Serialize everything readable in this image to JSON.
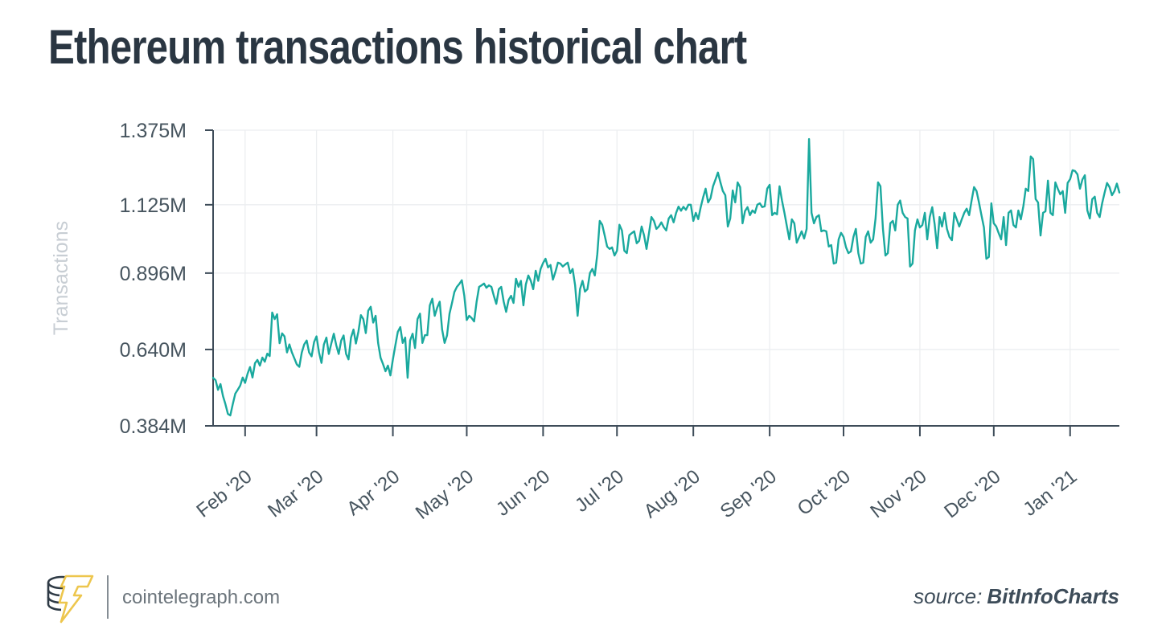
{
  "title": "Ethereum transactions historical chart",
  "footer": {
    "site": "cointelegraph.com",
    "source_prefix": "source:",
    "source_name": "BitInfoCharts"
  },
  "colors": {
    "line": "#1aa99e",
    "axis": "#3e4c59",
    "grid": "#eceef0",
    "tick_label": "#47555f",
    "y_axis_title": "#c8ced4",
    "title_text": "#2a3642",
    "logo_coin_outline": "#2e3a45",
    "logo_bolt_gold": "#edc64d",
    "source_text": "#3d4c59"
  },
  "chart_data": {
    "type": "line",
    "title": "Ethereum transactions historical chart",
    "xlabel": "",
    "ylabel": "Transactions",
    "unit": "M transactions per day",
    "grid": true,
    "legend": "none",
    "line_color": "#1aa99e",
    "ylim": [
      0.384,
      1.375
    ],
    "xlim": [
      0,
      368
    ],
    "x_unit": "days (daily series, day 13 = Feb 1 '20)",
    "y_ticks": [
      {
        "label": "1.375M",
        "value": 1.375
      },
      {
        "label": "1.125M",
        "value": 1.125
      },
      {
        "label": "0.896M",
        "value": 0.896
      },
      {
        "label": "0.640M",
        "value": 0.64
      },
      {
        "label": "0.384M",
        "value": 0.384
      }
    ],
    "x_ticks": [
      {
        "label": "Feb '20",
        "day": 13
      },
      {
        "label": "Mar '20",
        "day": 42
      },
      {
        "label": "Apr '20",
        "day": 73
      },
      {
        "label": "May '20",
        "day": 103
      },
      {
        "label": "Jun '20",
        "day": 134
      },
      {
        "label": "Jul '20",
        "day": 164
      },
      {
        "label": "Aug '20",
        "day": 195
      },
      {
        "label": "Sep '20",
        "day": 226
      },
      {
        "label": "Oct '20",
        "day": 256
      },
      {
        "label": "Nov '20",
        "day": 287
      },
      {
        "label": "Dec '20",
        "day": 317
      },
      {
        "label": "Jan '21",
        "day": 348
      }
    ],
    "points": [
      [
        0,
        0.545
      ],
      [
        1,
        0.537
      ],
      [
        2,
        0.505
      ],
      [
        3,
        0.524
      ],
      [
        4,
        0.484
      ],
      [
        5,
        0.457
      ],
      [
        6,
        0.424
      ],
      [
        7,
        0.419
      ],
      [
        8,
        0.457
      ],
      [
        9,
        0.492
      ],
      [
        10,
        0.505
      ],
      [
        11,
        0.519
      ],
      [
        12,
        0.546
      ],
      [
        13,
        0.528
      ],
      [
        14,
        0.559
      ],
      [
        15,
        0.581
      ],
      [
        16,
        0.546
      ],
      [
        17,
        0.594
      ],
      [
        18,
        0.605
      ],
      [
        19,
        0.586
      ],
      [
        20,
        0.613
      ],
      [
        21,
        0.599
      ],
      [
        22,
        0.626
      ],
      [
        23,
        0.618
      ],
      [
        24,
        0.764
      ],
      [
        25,
        0.742
      ],
      [
        26,
        0.758
      ],
      [
        27,
        0.661
      ],
      [
        28,
        0.694
      ],
      [
        29,
        0.684
      ],
      [
        30,
        0.63
      ],
      [
        31,
        0.657
      ],
      [
        32,
        0.63
      ],
      [
        33,
        0.61
      ],
      [
        34,
        0.59
      ],
      [
        35,
        0.582
      ],
      [
        36,
        0.63
      ],
      [
        37,
        0.657
      ],
      [
        38,
        0.67
      ],
      [
        39,
        0.63
      ],
      [
        40,
        0.617
      ],
      [
        41,
        0.665
      ],
      [
        42,
        0.684
      ],
      [
        43,
        0.63
      ],
      [
        44,
        0.595
      ],
      [
        45,
        0.657
      ],
      [
        46,
        0.68
      ],
      [
        47,
        0.625
      ],
      [
        48,
        0.66
      ],
      [
        49,
        0.693
      ],
      [
        50,
        0.655
      ],
      [
        51,
        0.625
      ],
      [
        52,
        0.67
      ],
      [
        53,
        0.687
      ],
      [
        54,
        0.625
      ],
      [
        55,
        0.607
      ],
      [
        56,
        0.68
      ],
      [
        57,
        0.707
      ],
      [
        58,
        0.66
      ],
      [
        59,
        0.7
      ],
      [
        60,
        0.755
      ],
      [
        61,
        0.742
      ],
      [
        62,
        0.695
      ],
      [
        63,
        0.77
      ],
      [
        64,
        0.783
      ],
      [
        65,
        0.73
      ],
      [
        66,
        0.753
      ],
      [
        67,
        0.662
      ],
      [
        68,
        0.612
      ],
      [
        69,
        0.591
      ],
      [
        70,
        0.567
      ],
      [
        71,
        0.586
      ],
      [
        72,
        0.553
      ],
      [
        73,
        0.607
      ],
      [
        74,
        0.653
      ],
      [
        75,
        0.699
      ],
      [
        76,
        0.715
      ],
      [
        77,
        0.662
      ],
      [
        78,
        0.68
      ],
      [
        79,
        0.545
      ],
      [
        80,
        0.67
      ],
      [
        81,
        0.693
      ],
      [
        82,
        0.645
      ],
      [
        83,
        0.742
      ],
      [
        84,
        0.76
      ],
      [
        85,
        0.662
      ],
      [
        86,
        0.688
      ],
      [
        87,
        0.688
      ],
      [
        88,
        0.788
      ],
      [
        89,
        0.81
      ],
      [
        90,
        0.753
      ],
      [
        91,
        0.78
      ],
      [
        92,
        0.8
      ],
      [
        93,
        0.707
      ],
      [
        94,
        0.662
      ],
      [
        95,
        0.687
      ],
      [
        96,
        0.76
      ],
      [
        97,
        0.796
      ],
      [
        98,
        0.833
      ],
      [
        99,
        0.85
      ],
      [
        100,
        0.86
      ],
      [
        101,
        0.872
      ],
      [
        102,
        0.82
      ],
      [
        103,
        0.739
      ],
      [
        104,
        0.753
      ],
      [
        105,
        0.745
      ],
      [
        106,
        0.734
      ],
      [
        107,
        0.8
      ],
      [
        108,
        0.85
      ],
      [
        109,
        0.855
      ],
      [
        110,
        0.861
      ],
      [
        111,
        0.847
      ],
      [
        112,
        0.855
      ],
      [
        113,
        0.85
      ],
      [
        114,
        0.82
      ],
      [
        115,
        0.793
      ],
      [
        116,
        0.842
      ],
      [
        117,
        0.85
      ],
      [
        118,
        0.8
      ],
      [
        119,
        0.766
      ],
      [
        120,
        0.806
      ],
      [
        121,
        0.82
      ],
      [
        122,
        0.796
      ],
      [
        123,
        0.877
      ],
      [
        124,
        0.85
      ],
      [
        125,
        0.87
      ],
      [
        126,
        0.788
      ],
      [
        127,
        0.858
      ],
      [
        128,
        0.888
      ],
      [
        129,
        0.87
      ],
      [
        130,
        0.842
      ],
      [
        131,
        0.904
      ],
      [
        132,
        0.87
      ],
      [
        133,
        0.91
      ],
      [
        134,
        0.93
      ],
      [
        135,
        0.944
      ],
      [
        136,
        0.915
      ],
      [
        137,
        0.923
      ],
      [
        138,
        0.874
      ],
      [
        139,
        0.9
      ],
      [
        140,
        0.931
      ],
      [
        141,
        0.928
      ],
      [
        142,
        0.918
      ],
      [
        143,
        0.925
      ],
      [
        144,
        0.931
      ],
      [
        145,
        0.896
      ],
      [
        146,
        0.91
      ],
      [
        147,
        0.855
      ],
      [
        148,
        0.753
      ],
      [
        149,
        0.842
      ],
      [
        150,
        0.87
      ],
      [
        151,
        0.834
      ],
      [
        152,
        0.842
      ],
      [
        153,
        0.896
      ],
      [
        154,
        0.91
      ],
      [
        155,
        0.888
      ],
      [
        156,
        0.96
      ],
      [
        157,
        1.071
      ],
      [
        158,
        1.058
      ],
      [
        159,
        1.023
      ],
      [
        160,
        0.985
      ],
      [
        161,
        0.977
      ],
      [
        162,
        0.982
      ],
      [
        163,
        0.955
      ],
      [
        164,
        0.971
      ],
      [
        165,
        1.058
      ],
      [
        166,
        1.039
      ],
      [
        167,
        0.971
      ],
      [
        168,
        0.963
      ],
      [
        169,
        1.023
      ],
      [
        170,
        1.03
      ],
      [
        171,
        1.036
      ],
      [
        172,
        0.996
      ],
      [
        173,
        1.004
      ],
      [
        174,
        1.052
      ],
      [
        175,
        1.023
      ],
      [
        176,
        0.977
      ],
      [
        177,
        1.031
      ],
      [
        178,
        1.084
      ],
      [
        179,
        1.071
      ],
      [
        180,
        1.044
      ],
      [
        181,
        1.052
      ],
      [
        182,
        1.066
      ],
      [
        183,
        1.05
      ],
      [
        184,
        1.039
      ],
      [
        185,
        1.079
      ],
      [
        186,
        1.09
      ],
      [
        187,
        1.066
      ],
      [
        188,
        1.098
      ],
      [
        189,
        1.119
      ],
      [
        190,
        1.105
      ],
      [
        191,
        1.118
      ],
      [
        192,
        1.108
      ],
      [
        193,
        1.125
      ],
      [
        194,
        1.125
      ],
      [
        195,
        1.071
      ],
      [
        196,
        1.098
      ],
      [
        197,
        1.077
      ],
      [
        198,
        1.117
      ],
      [
        199,
        1.15
      ],
      [
        200,
        1.179
      ],
      [
        201,
        1.133
      ],
      [
        202,
        1.147
      ],
      [
        203,
        1.187
      ],
      [
        204,
        1.21
      ],
      [
        205,
        1.233
      ],
      [
        206,
        1.2
      ],
      [
        207,
        1.171
      ],
      [
        208,
        1.157
      ],
      [
        209,
        1.052
      ],
      [
        210,
        1.079
      ],
      [
        211,
        1.173
      ],
      [
        212,
        1.133
      ],
      [
        213,
        1.2
      ],
      [
        214,
        1.184
      ],
      [
        215,
        1.063
      ],
      [
        216,
        1.104
      ],
      [
        217,
        1.117
      ],
      [
        218,
        1.09
      ],
      [
        219,
        1.106
      ],
      [
        220,
        1.098
      ],
      [
        221,
        1.125
      ],
      [
        222,
        1.13
      ],
      [
        223,
        1.117
      ],
      [
        224,
        1.12
      ],
      [
        225,
        1.179
      ],
      [
        226,
        1.192
      ],
      [
        227,
        1.09
      ],
      [
        228,
        1.098
      ],
      [
        229,
        1.093
      ],
      [
        230,
        1.187
      ],
      [
        231,
        1.14
      ],
      [
        232,
        1.098
      ],
      [
        233,
        1.052
      ],
      [
        234,
        1.009
      ],
      [
        235,
        1.076
      ],
      [
        236,
        1.063
      ],
      [
        237,
        0.998
      ],
      [
        238,
        1.017
      ],
      [
        239,
        1.036
      ],
      [
        240,
        1.012
      ],
      [
        241,
        1.044
      ],
      [
        242,
        1.345
      ],
      [
        243,
        1.098
      ],
      [
        244,
        1.063
      ],
      [
        245,
        1.084
      ],
      [
        246,
        1.09
      ],
      [
        247,
        1.036
      ],
      [
        248,
        1.039
      ],
      [
        249,
        1.036
      ],
      [
        250,
        0.985
      ],
      [
        251,
        0.99
      ],
      [
        252,
        0.928
      ],
      [
        253,
        0.931
      ],
      [
        254,
        1.009
      ],
      [
        255,
        1.031
      ],
      [
        256,
        1.017
      ],
      [
        257,
        0.982
      ],
      [
        258,
        0.963
      ],
      [
        259,
        0.969
      ],
      [
        260,
        1.017
      ],
      [
        261,
        1.044
      ],
      [
        262,
        0.963
      ],
      [
        263,
        0.928
      ],
      [
        264,
        0.931
      ],
      [
        265,
        1.017
      ],
      [
        266,
        1.036
      ],
      [
        267,
        0.998
      ],
      [
        268,
        1.009
      ],
      [
        269,
        1.079
      ],
      [
        270,
        1.2
      ],
      [
        271,
        1.187
      ],
      [
        272,
        1.044
      ],
      [
        273,
        0.955
      ],
      [
        274,
        0.963
      ],
      [
        275,
        1.063
      ],
      [
        276,
        1.071
      ],
      [
        277,
        1.039
      ],
      [
        278,
        1.125
      ],
      [
        279,
        1.139
      ],
      [
        280,
        1.098
      ],
      [
        281,
        1.084
      ],
      [
        282,
        1.079
      ],
      [
        283,
        0.918
      ],
      [
        284,
        0.928
      ],
      [
        285,
        1.039
      ],
      [
        286,
        1.076
      ],
      [
        287,
        1.049
      ],
      [
        288,
        1.057
      ],
      [
        289,
        1.098
      ],
      [
        290,
        1.009
      ],
      [
        291,
        1.084
      ],
      [
        292,
        1.117
      ],
      [
        293,
        1.06
      ],
      [
        294,
        0.979
      ],
      [
        295,
        1.084
      ],
      [
        296,
        1.052
      ],
      [
        297,
        1.098
      ],
      [
        298,
        1.044
      ],
      [
        299,
        1.017
      ],
      [
        300,
        1.006
      ],
      [
        301,
        1.098
      ],
      [
        302,
        1.075
      ],
      [
        303,
        1.052
      ],
      [
        304,
        1.076
      ],
      [
        305,
        1.098
      ],
      [
        306,
        1.112
      ],
      [
        307,
        1.09
      ],
      [
        308,
        1.14
      ],
      [
        309,
        1.184
      ],
      [
        310,
        1.171
      ],
      [
        311,
        1.133
      ],
      [
        312,
        1.09
      ],
      [
        313,
        1.049
      ],
      [
        314,
        0.944
      ],
      [
        315,
        0.95
      ],
      [
        316,
        1.13
      ],
      [
        317,
        1.063
      ],
      [
        318,
        1.052
      ],
      [
        319,
        1.03
      ],
      [
        320,
        1.009
      ],
      [
        321,
        1.084
      ],
      [
        322,
        0.99
      ],
      [
        323,
        1.098
      ],
      [
        324,
        1.106
      ],
      [
        325,
        1.057
      ],
      [
        326,
        1.049
      ],
      [
        327,
        1.106
      ],
      [
        328,
        1.076
      ],
      [
        329,
        1.12
      ],
      [
        330,
        1.179
      ],
      [
        331,
        1.171
      ],
      [
        332,
        1.287
      ],
      [
        333,
        1.278
      ],
      [
        334,
        1.144
      ],
      [
        335,
        1.133
      ],
      [
        336,
        1.022
      ],
      [
        337,
        1.098
      ],
      [
        338,
        1.103
      ],
      [
        339,
        1.206
      ],
      [
        340,
        1.098
      ],
      [
        341,
        1.09
      ],
      [
        342,
        1.2
      ],
      [
        343,
        1.179
      ],
      [
        344,
        1.16
      ],
      [
        345,
        1.171
      ],
      [
        346,
        1.098
      ],
      [
        347,
        1.198
      ],
      [
        348,
        1.211
      ],
      [
        349,
        1.241
      ],
      [
        350,
        1.238
      ],
      [
        351,
        1.227
      ],
      [
        352,
        1.179
      ],
      [
        353,
        1.21
      ],
      [
        354,
        1.224
      ],
      [
        355,
        1.106
      ],
      [
        356,
        1.079
      ],
      [
        357,
        1.144
      ],
      [
        358,
        1.152
      ],
      [
        359,
        1.098
      ],
      [
        360,
        1.084
      ],
      [
        361,
        1.13
      ],
      [
        362,
        1.165
      ],
      [
        363,
        1.198
      ],
      [
        364,
        1.184
      ],
      [
        365,
        1.157
      ],
      [
        366,
        1.171
      ],
      [
        367,
        1.196
      ],
      [
        368,
        1.166
      ]
    ]
  }
}
